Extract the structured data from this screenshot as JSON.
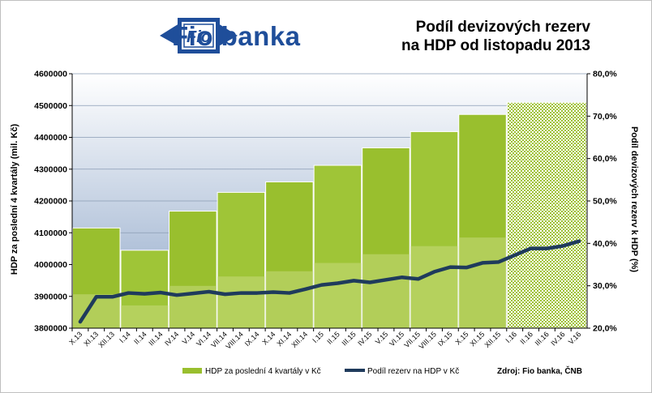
{
  "brand": {
    "name": "Fio banka",
    "logo_text": "Fio"
  },
  "title_lines": [
    "Podíl devizových  rezerv",
    "na HDP od listopadu  2013"
  ],
  "source_note": "Zdroj: Fio banka, ČNB",
  "colors": {
    "bar": "#99bf2e",
    "bar_light": "#c8dc78",
    "line": "#1f3b5c",
    "brand": "#1f4e9a"
  },
  "chart_data": {
    "type": "bar",
    "categories": [
      "X.13",
      "XI.13",
      "XII.13",
      "I.14",
      "II.14",
      "III.14",
      "IV.14",
      "V.14",
      "VI.14",
      "VII.14",
      "VIII.14",
      "IX.14",
      "X.14",
      "XI.14",
      "XII.14",
      "I.15",
      "II.15",
      "III.15",
      "IV.15",
      "V.15",
      "VI.15",
      "VII.15",
      "VIII.15",
      "IX.15",
      "X.15",
      "XI.15",
      "XII.15",
      "I.16",
      "II.16",
      "III.16",
      "IV.16",
      "V.16"
    ],
    "series": [
      {
        "name": "HDP za poslední 4 kvartály v Kč",
        "axis": "left",
        "type": "bar",
        "values": [
          4115000,
          4115000,
          4115000,
          4045000,
          4045000,
          4045000,
          4168000,
          4168000,
          4168000,
          4227000,
          4227000,
          4227000,
          4260000,
          4260000,
          4260000,
          4312000,
          4312000,
          4312000,
          4367000,
          4367000,
          4367000,
          4418000,
          4418000,
          4418000,
          4472000,
          4472000,
          4472000,
          4510000,
          4510000,
          4510000,
          4510000,
          4510000
        ],
        "estimated_from_index": 27
      },
      {
        "name": "Podíl rezerv na HDP v Kč",
        "axis": "right",
        "type": "line",
        "values": [
          21.5,
          27.4,
          27.4,
          28.3,
          28.1,
          28.4,
          27.8,
          28.2,
          28.6,
          28.0,
          28.3,
          28.3,
          28.5,
          28.3,
          29.2,
          30.2,
          30.6,
          31.2,
          30.8,
          31.4,
          32.0,
          31.6,
          33.3,
          34.4,
          34.3,
          35.4,
          35.6,
          37.2,
          38.8,
          38.8,
          39.4,
          40.5
        ]
      }
    ],
    "ylabel": "HDP  za poslední  4 kvartály  (mil. Kč)",
    "y2label": "Podíl  devizových  rezerv  k HDP  (%)",
    "ylim": [
      3800000,
      4600000
    ],
    "y2lim": [
      20,
      80
    ],
    "yticks": [
      "3800000",
      "3900000",
      "4000000",
      "4100000",
      "4200000",
      "4300000",
      "4400000",
      "4500000",
      "4600000"
    ],
    "y2ticks": [
      "20,0%",
      "30,0%",
      "40,0%",
      "50,0%",
      "60,0%",
      "70,0%",
      "80,0%"
    ],
    "grid": true,
    "legend": "bottom"
  }
}
